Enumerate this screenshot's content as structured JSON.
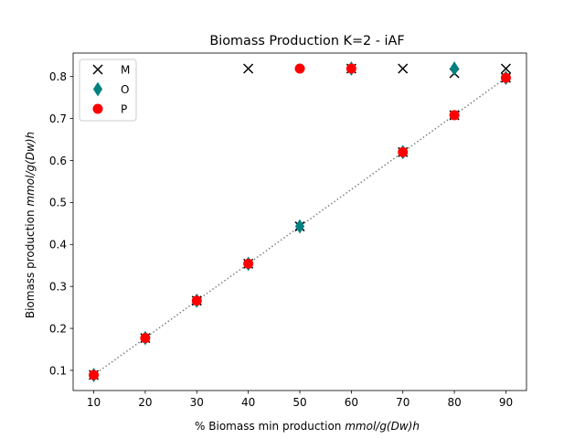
{
  "chart_data": {
    "type": "scatter",
    "title": "Biomass Production K=2 - iAF",
    "xlabel_plain": "% Biomass min production ",
    "xlabel_math": "mmol/g(Dw)h",
    "ylabel_plain": "Biomass  production ",
    "ylabel_math": "mmol/g(Dw)h",
    "xlim": [
      6.0,
      94.0
    ],
    "ylim": [
      0.052,
      0.856
    ],
    "xticks": [
      10,
      20,
      30,
      40,
      50,
      60,
      70,
      80,
      90
    ],
    "yticks": [
      0.1,
      0.2,
      0.3,
      0.4,
      0.5,
      0.6,
      0.7,
      0.8
    ],
    "reference_line": {
      "style": "dotted",
      "color": "#808080",
      "x": [
        10,
        20,
        30,
        40,
        50,
        60,
        70,
        80,
        90
      ],
      "y": [
        0.089,
        0.177,
        0.266,
        0.354,
        0.443,
        0.531,
        0.62,
        0.708,
        0.797
      ]
    },
    "series": [
      {
        "name": "M",
        "marker": "x",
        "color": "#000000",
        "points": [
          [
            10,
            0.089
          ],
          [
            20,
            0.177
          ],
          [
            30,
            0.266
          ],
          [
            40,
            0.354
          ],
          [
            50,
            0.443
          ],
          [
            70,
            0.62
          ],
          [
            80,
            0.708
          ],
          [
            90,
            0.797
          ],
          [
            40,
            0.819
          ],
          [
            60,
            0.819
          ],
          [
            70,
            0.819
          ],
          [
            80,
            0.808
          ],
          [
            90,
            0.819
          ]
        ]
      },
      {
        "name": "O",
        "marker": "diamond",
        "color": "#008080",
        "points": [
          [
            10,
            0.089
          ],
          [
            20,
            0.177
          ],
          [
            30,
            0.266
          ],
          [
            40,
            0.354
          ],
          [
            50,
            0.443
          ],
          [
            60,
            0.819
          ],
          [
            70,
            0.62
          ],
          [
            80,
            0.819
          ],
          [
            90,
            0.797
          ]
        ]
      },
      {
        "name": "P",
        "marker": "circle",
        "color": "#ff0000",
        "points": [
          [
            10,
            0.089
          ],
          [
            20,
            0.177
          ],
          [
            30,
            0.266
          ],
          [
            40,
            0.354
          ],
          [
            50,
            0.819
          ],
          [
            60,
            0.819
          ],
          [
            70,
            0.62
          ],
          [
            80,
            0.708
          ],
          [
            90,
            0.797
          ]
        ]
      }
    ],
    "legend_position": "top-left",
    "grid": false
  }
}
